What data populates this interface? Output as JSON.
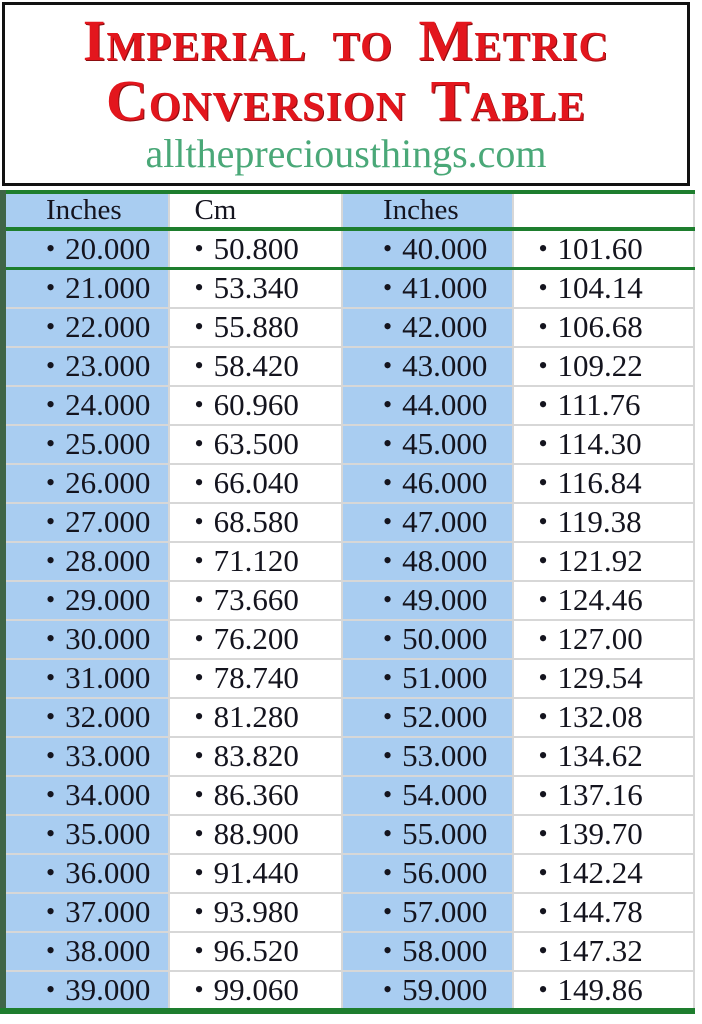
{
  "header": {
    "title_line1": "Imperial to Metric",
    "title_line2": "Conversion Table",
    "website": "allthepreciousthings.com"
  },
  "table": {
    "bullet": "•",
    "columns": [
      "Inches",
      "Cm",
      "Inches",
      ""
    ],
    "rows": [
      {
        "in1": "20.000",
        "cm1": "50.800",
        "in2": "40.000",
        "cm2": "101.60"
      },
      {
        "in1": "21.000",
        "cm1": "53.340",
        "in2": "41.000",
        "cm2": "104.14"
      },
      {
        "in1": "22.000",
        "cm1": "55.880",
        "in2": "42.000",
        "cm2": "106.68"
      },
      {
        "in1": "23.000",
        "cm1": "58.420",
        "in2": "43.000",
        "cm2": "109.22"
      },
      {
        "in1": "24.000",
        "cm1": "60.960",
        "in2": "44.000",
        "cm2": "111.76"
      },
      {
        "in1": "25.000",
        "cm1": "63.500",
        "in2": "45.000",
        "cm2": "114.30"
      },
      {
        "in1": "26.000",
        "cm1": "66.040",
        "in2": "46.000",
        "cm2": "116.84"
      },
      {
        "in1": "27.000",
        "cm1": "68.580",
        "in2": "47.000",
        "cm2": "119.38"
      },
      {
        "in1": "28.000",
        "cm1": "71.120",
        "in2": "48.000",
        "cm2": "121.92"
      },
      {
        "in1": "29.000",
        "cm1": "73.660",
        "in2": "49.000",
        "cm2": "124.46"
      },
      {
        "in1": "30.000",
        "cm1": "76.200",
        "in2": "50.000",
        "cm2": "127.00"
      },
      {
        "in1": "31.000",
        "cm1": "78.740",
        "in2": "51.000",
        "cm2": "129.54"
      },
      {
        "in1": "32.000",
        "cm1": "81.280",
        "in2": "52.000",
        "cm2": "132.08"
      },
      {
        "in1": "33.000",
        "cm1": "83.820",
        "in2": "53.000",
        "cm2": "134.62"
      },
      {
        "in1": "34.000",
        "cm1": "86.360",
        "in2": "54.000",
        "cm2": "137.16"
      },
      {
        "in1": "35.000",
        "cm1": "88.900",
        "in2": "55.000",
        "cm2": "139.70"
      },
      {
        "in1": "36.000",
        "cm1": "91.440",
        "in2": "56.000",
        "cm2": "142.24"
      },
      {
        "in1": "37.000",
        "cm1": "93.980",
        "in2": "57.000",
        "cm2": "144.78"
      },
      {
        "in1": "38.000",
        "cm1": "96.520",
        "in2": "58.000",
        "cm2": "147.32"
      },
      {
        "in1": "39.000",
        "cm1": "99.060",
        "in2": "59.000",
        "cm2": "149.86"
      }
    ]
  },
  "colors": {
    "title_red": "#e3161d",
    "website_green": "#4aa878",
    "accent_green_line": "#1e7e2e",
    "inches_column_blue": "#a9cdf1",
    "header_box_border": "#111111"
  }
}
